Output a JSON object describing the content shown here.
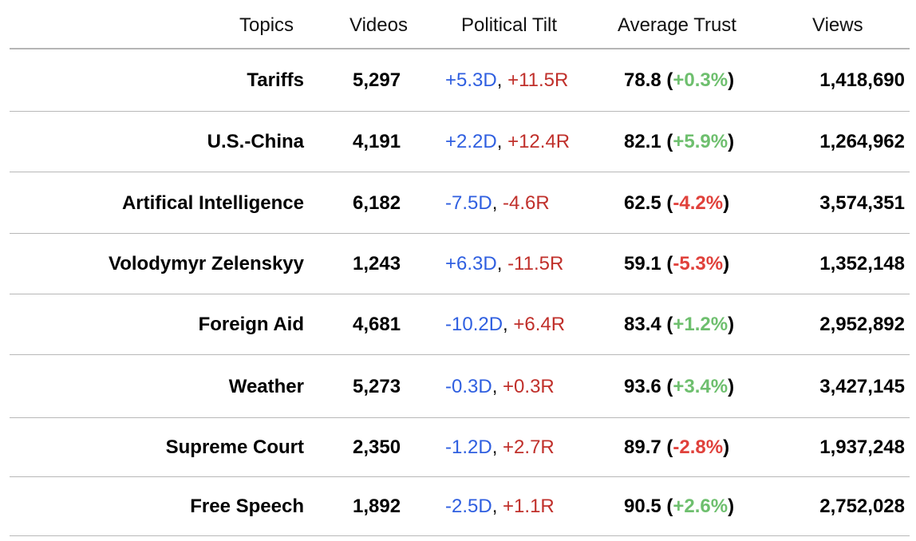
{
  "columns": {
    "topics": "Topics",
    "videos": "Videos",
    "tilt": "Political Tilt",
    "trust": "Average Trust",
    "views": "Views"
  },
  "rows": [
    {
      "topic": "Tariffs",
      "videos": "5,297",
      "tilt_d": "+5.3D",
      "tilt_r": "+11.5R",
      "trust": "78.8",
      "change": "+0.3%",
      "views": "1,418,690"
    },
    {
      "topic": "U.S.-China",
      "videos": "4,191",
      "tilt_d": "+2.2D",
      "tilt_r": "+12.4R",
      "trust": "82.1",
      "change": "+5.9%",
      "views": "1,264,962"
    },
    {
      "topic": "Artifical Intelligence",
      "videos": "6,182",
      "tilt_d": "-7.5D",
      "tilt_r": "-4.6R",
      "trust": "62.5",
      "change": "-4.2%",
      "views": "3,574,351"
    },
    {
      "topic": "Volodymyr Zelenskyy",
      "videos": "1,243",
      "tilt_d": "+6.3D",
      "tilt_r": "-11.5R",
      "trust": "59.1",
      "change": "-5.3%",
      "views": "1,352,148"
    },
    {
      "topic": "Foreign Aid",
      "videos": "4,681",
      "tilt_d": "-10.2D",
      "tilt_r": "+6.4R",
      "trust": "83.4",
      "change": "+1.2%",
      "views": "2,952,892"
    },
    {
      "topic": "Weather",
      "videos": "5,273",
      "tilt_d": "-0.3D",
      "tilt_r": "+0.3R",
      "trust": "93.6",
      "change": "+3.4%",
      "views": "3,427,145"
    },
    {
      "topic": "Supreme Court",
      "videos": "2,350",
      "tilt_d": "-1.2D",
      "tilt_r": "+2.7R",
      "trust": "89.7",
      "change": "-2.8%",
      "views": "1,937,248"
    },
    {
      "topic": "Free Speech",
      "videos": "1,892",
      "tilt_d": "-2.5D",
      "tilt_r": "+1.1R",
      "trust": "90.5",
      "change": "+2.6%",
      "views": "2,752,028"
    }
  ],
  "colors": {
    "democrat": "#2f5fe0",
    "republican": "#c0302b",
    "positive": "#6ebf6e",
    "negative": "#e0413b",
    "rule": "#b8b8b8"
  }
}
